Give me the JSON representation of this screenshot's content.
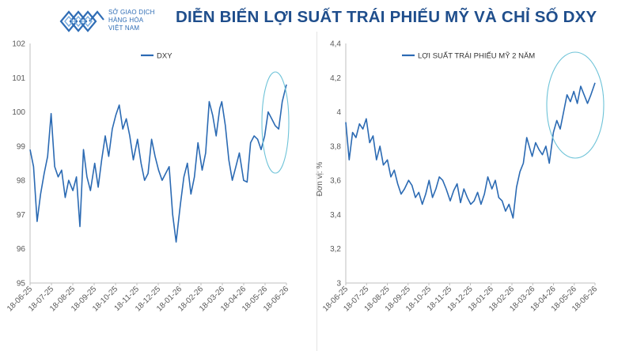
{
  "logo": {
    "line1": "SỞ GIAO DỊCH",
    "line2": "HÀNG HÓA",
    "line3": "VIỆT NAM",
    "color": "#2f6db5"
  },
  "title": "DIỄN BIẾN LỢI SUẤT TRÁI PHIẾU MỸ VÀ CHỈ SỐ DXY",
  "colors": {
    "title": "#1f4e8c",
    "line": "#2b6ab3",
    "ellipse": "#6ec3d8",
    "axis_text": "#595959",
    "axis_line": "#bfbfbf"
  },
  "chart_data": [
    {
      "type": "line",
      "series": [
        {
          "name": "DXY",
          "x": [
            "18-06-25",
            "23-06-25",
            "28-06-25",
            "03-07-25",
            "08-07-25",
            "13-07-25",
            "18-07-25",
            "23-07-25",
            "28-07-25",
            "02-08-25",
            "07-08-25",
            "12-08-25",
            "18-08-25",
            "23-08-25",
            "28-08-25",
            "02-09-25",
            "07-09-25",
            "12-09-25",
            "18-09-25",
            "23-09-25",
            "28-09-25",
            "03-10-25",
            "08-10-25",
            "13-10-25",
            "18-10-25",
            "23-10-25",
            "28-10-25",
            "02-11-25",
            "07-11-25",
            "12-11-25",
            "18-11-25",
            "23-11-25",
            "28-11-25",
            "03-12-25",
            "08-12-25",
            "13-12-25",
            "18-12-25",
            "23-12-25",
            "28-12-25",
            "02-01-26",
            "07-01-26",
            "12-01-26",
            "18-01-26",
            "23-01-26",
            "28-01-26",
            "02-02-26",
            "07-02-26",
            "12-02-26",
            "18-02-26",
            "23-02-26",
            "28-02-26",
            "05-03-26",
            "10-03-26",
            "15-03-26",
            "18-03-26",
            "23-03-26",
            "28-03-26",
            "02-04-26",
            "07-04-26",
            "12-04-26",
            "18-04-26",
            "23-04-26",
            "28-04-26",
            "03-05-26",
            "08-05-26",
            "13-05-26",
            "18-05-26",
            "23-05-26",
            "28-05-26",
            "02-06-26",
            "07-06-26",
            "12-06-26",
            "18-06-26"
          ],
          "values": [
            98.9,
            98.4,
            96.8,
            97.6,
            98.2,
            98.7,
            99.95,
            98.4,
            98.1,
            98.3,
            97.5,
            98.0,
            97.7,
            98.1,
            96.65,
            98.9,
            98.1,
            97.7,
            98.5,
            97.8,
            98.6,
            99.3,
            98.7,
            99.5,
            99.9,
            100.2,
            99.5,
            99.8,
            99.3,
            98.6,
            99.2,
            98.5,
            98.0,
            98.2,
            99.2,
            98.7,
            98.3,
            98.0,
            98.2,
            98.4,
            97.0,
            96.2,
            97.3,
            98.1,
            98.5,
            97.6,
            98.1,
            99.1,
            98.3,
            98.8,
            100.3,
            99.9,
            99.3,
            100.1,
            100.3,
            99.6,
            98.6,
            98.0,
            98.4,
            98.8,
            98.0,
            97.95,
            99.1,
            99.3,
            99.2,
            98.9,
            99.3,
            100.0,
            99.8,
            99.6,
            99.5,
            100.3,
            100.8
          ]
        }
      ],
      "ylim": [
        95,
        102
      ],
      "y_ticks": [
        "95",
        "96",
        "97",
        "98",
        "99",
        "100",
        "101",
        "102"
      ],
      "x_tick_labels": [
        "18-06-25",
        "18-07-25",
        "18-08-25",
        "18-09-25",
        "18-10-25",
        "18-11-25",
        "18-12-25",
        "18-01-26",
        "18-02-26",
        "18-03-26",
        "18-04-26",
        "18-05-26",
        "18-06-26"
      ],
      "xlabel": "",
      "ylabel": "",
      "legend": "top-left",
      "grid": false,
      "annotation": "ellipse around June 2026 values"
    },
    {
      "type": "line",
      "series": [
        {
          "name": "LỢI SUẤT TRÁI PHIẾU MỸ 2 NĂM",
          "x": [
            "18-06-25",
            "23-06-25",
            "28-06-25",
            "03-07-25",
            "08-07-25",
            "13-07-25",
            "18-07-25",
            "23-07-25",
            "28-07-25",
            "02-08-25",
            "07-08-25",
            "12-08-25",
            "18-08-25",
            "23-08-25",
            "28-08-25",
            "02-09-25",
            "07-09-25",
            "12-09-25",
            "18-09-25",
            "23-09-25",
            "28-09-25",
            "03-10-25",
            "08-10-25",
            "13-10-25",
            "18-10-25",
            "23-10-25",
            "28-10-25",
            "02-11-25",
            "07-11-25",
            "12-11-25",
            "18-11-25",
            "23-11-25",
            "28-11-25",
            "03-12-25",
            "08-12-25",
            "13-12-25",
            "18-12-25",
            "23-12-25",
            "28-12-25",
            "02-01-26",
            "07-01-26",
            "12-01-26",
            "18-01-26",
            "23-01-26",
            "28-01-26",
            "02-02-26",
            "07-02-26",
            "12-02-26",
            "18-02-26",
            "23-02-26",
            "28-02-26",
            "05-03-26",
            "10-03-26",
            "15-03-26",
            "18-03-26",
            "23-03-26",
            "28-03-26",
            "02-04-26",
            "07-04-26",
            "12-04-26",
            "18-04-26",
            "23-04-26",
            "28-04-26",
            "03-05-26",
            "08-05-26",
            "13-05-26",
            "18-05-26",
            "23-05-26",
            "28-05-26",
            "02-06-26",
            "07-06-26",
            "12-06-26",
            "18-06-26"
          ],
          "values": [
            3.94,
            3.72,
            3.88,
            3.85,
            3.93,
            3.9,
            3.96,
            3.82,
            3.86,
            3.72,
            3.8,
            3.69,
            3.72,
            3.62,
            3.66,
            3.58,
            3.52,
            3.55,
            3.6,
            3.57,
            3.5,
            3.53,
            3.46,
            3.52,
            3.6,
            3.5,
            3.55,
            3.62,
            3.6,
            3.55,
            3.48,
            3.54,
            3.58,
            3.47,
            3.55,
            3.5,
            3.46,
            3.48,
            3.53,
            3.46,
            3.52,
            3.62,
            3.55,
            3.6,
            3.5,
            3.48,
            3.42,
            3.46,
            3.38,
            3.56,
            3.65,
            3.7,
            3.85,
            3.78,
            3.74,
            3.82,
            3.78,
            3.75,
            3.8,
            3.7,
            3.88,
            3.95,
            3.9,
            4.0,
            4.1,
            4.06,
            4.12,
            4.05,
            4.15,
            4.1,
            4.05,
            4.1,
            4.17
          ]
        }
      ],
      "ylim": [
        3,
        4.4
      ],
      "y_ticks": [
        "3",
        "3,2",
        "3,4",
        "3,6",
        "3,8",
        "4",
        "4,2",
        "4,4"
      ],
      "x_tick_labels": [
        "18-06-25",
        "18-07-25",
        "18-08-25",
        "18-09-25",
        "18-10-25",
        "18-11-25",
        "18-12-25",
        "18-01-26",
        "18-02-26",
        "18-03-26",
        "18-04-26",
        "18-05-26",
        "18-06-26"
      ],
      "xlabel": "",
      "ylabel": "Đơn vị: %",
      "legend": "top-center",
      "grid": false,
      "annotation": "ellipse around May–June 2026 values"
    }
  ]
}
